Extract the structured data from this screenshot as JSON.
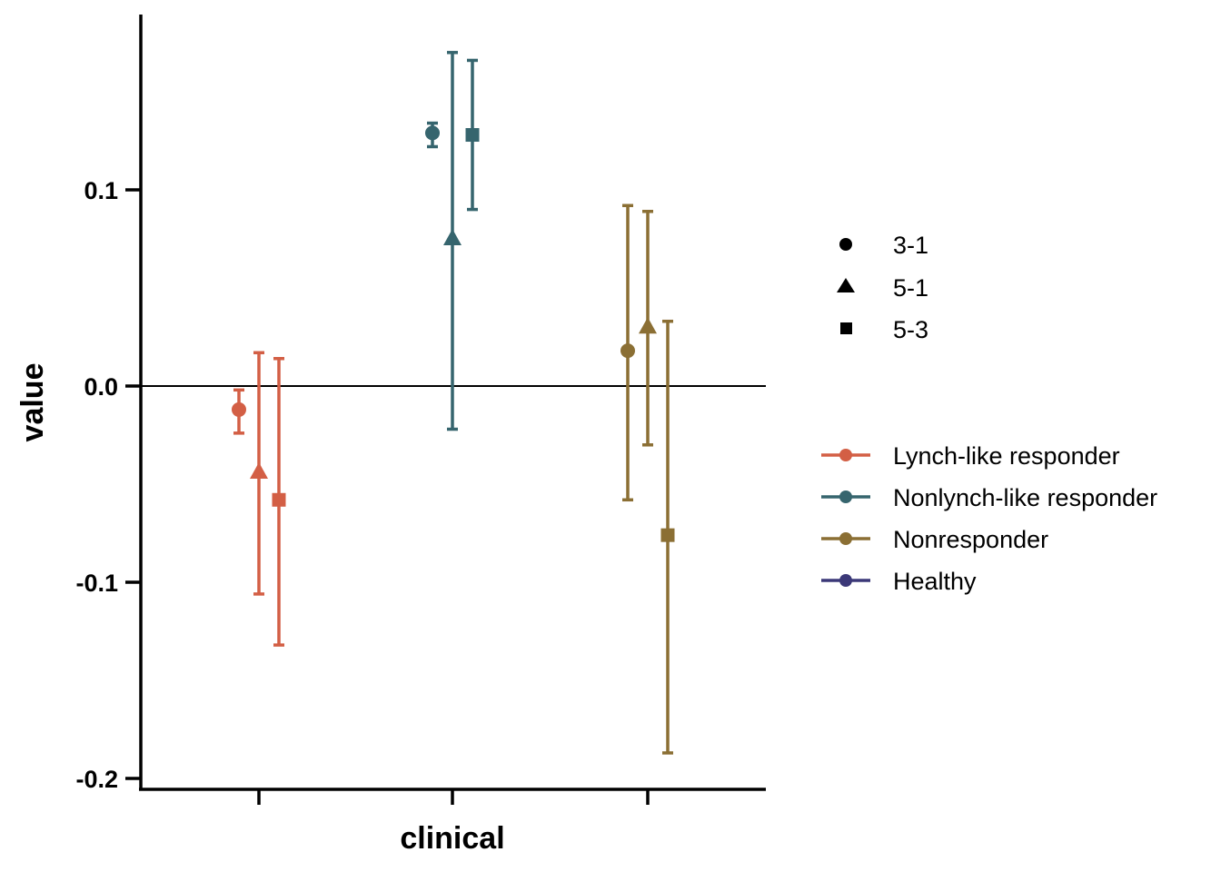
{
  "chart_data": {
    "type": "scatter",
    "xlabel": "clinical",
    "ylabel": "value",
    "ylim": [
      -0.2,
      0.18
    ],
    "yticks": [
      "0.1",
      "0.0",
      "-0.1",
      "-0.2"
    ],
    "ytick_values": [
      0.1,
      0.0,
      -0.1,
      -0.2
    ],
    "reference_line": 0.0,
    "shape_legend": [
      {
        "label": "3-1",
        "shape": "circle"
      },
      {
        "label": "5-1",
        "shape": "triangle"
      },
      {
        "label": "5-3",
        "shape": "square"
      }
    ],
    "color_legend": [
      {
        "label": "Lynch-like responder",
        "color": "#d35f45"
      },
      {
        "label": "Nonlynch-like responder",
        "color": "#36656e"
      },
      {
        "label": "Nonresponder",
        "color": "#8b6f34"
      },
      {
        "label": "Healthy",
        "color": "#3b3878"
      }
    ],
    "series": [
      {
        "group": "Lynch-like responder",
        "color": "#d35f45",
        "points": [
          {
            "comparison": "3-1",
            "shape": "circle",
            "y": -0.012,
            "ymin": -0.024,
            "ymax": -0.002
          },
          {
            "comparison": "5-1",
            "shape": "triangle",
            "y": -0.044,
            "ymin": -0.106,
            "ymax": 0.017
          },
          {
            "comparison": "5-3",
            "shape": "square",
            "y": -0.058,
            "ymin": -0.132,
            "ymax": 0.014
          }
        ]
      },
      {
        "group": "Nonlynch-like responder",
        "color": "#36656e",
        "points": [
          {
            "comparison": "3-1",
            "shape": "circle",
            "y": 0.129,
            "ymin": 0.122,
            "ymax": 0.134
          },
          {
            "comparison": "5-1",
            "shape": "triangle",
            "y": 0.075,
            "ymin": -0.022,
            "ymax": 0.17
          },
          {
            "comparison": "5-3",
            "shape": "square",
            "y": 0.128,
            "ymin": 0.09,
            "ymax": 0.166
          }
        ]
      },
      {
        "group": "Nonresponder",
        "color": "#8b6f34",
        "points": [
          {
            "comparison": "3-1",
            "shape": "circle",
            "y": 0.018,
            "ymin": -0.058,
            "ymax": 0.092
          },
          {
            "comparison": "5-1",
            "shape": "triangle",
            "y": 0.03,
            "ymin": -0.03,
            "ymax": 0.089
          },
          {
            "comparison": "5-3",
            "shape": "square",
            "y": -0.076,
            "ymin": -0.187,
            "ymax": 0.033
          }
        ]
      }
    ]
  }
}
